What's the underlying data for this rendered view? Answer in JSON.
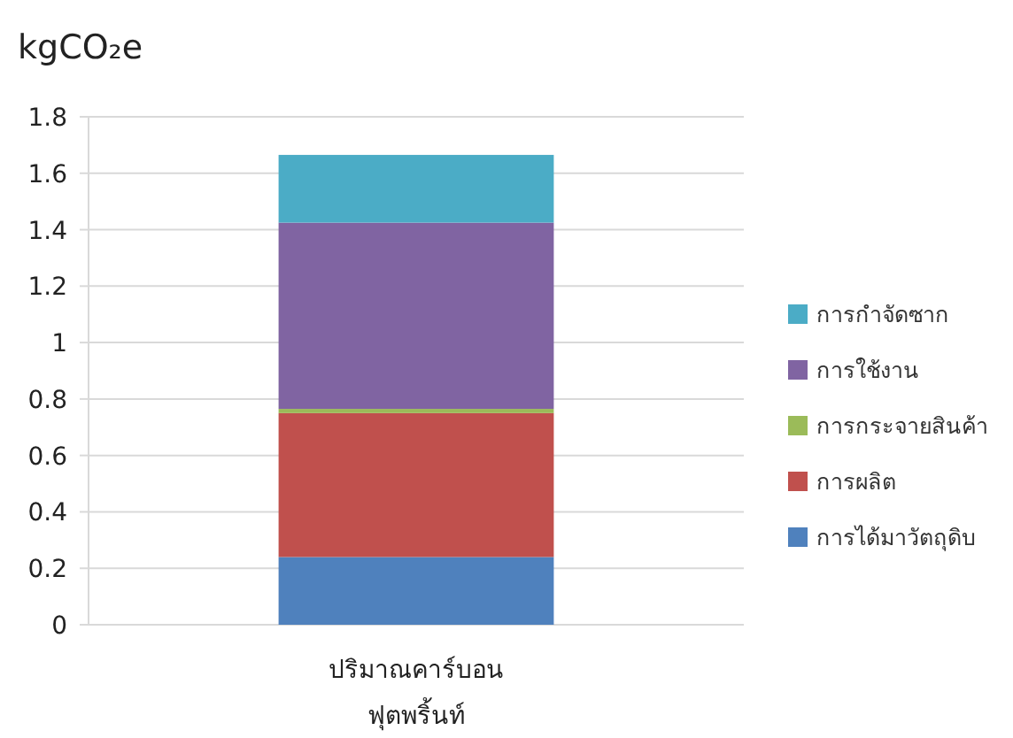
{
  "chart_data": {
    "type": "bar",
    "stacked": true,
    "ylabel": "kgCO₂e",
    "categories": [
      "ปริมาณคาร์บอน\nฟุตพริ้นท์"
    ],
    "series": [
      {
        "name": "การได้มาวัตถุดิบ",
        "color": "#4f81bd",
        "values": [
          0.24
        ]
      },
      {
        "name": "การผลิต",
        "color": "#c0504d",
        "values": [
          0.51
        ]
      },
      {
        "name": "การกระจายสินค้า",
        "color": "#9bbb59",
        "values": [
          0.015
        ]
      },
      {
        "name": "การใช้งาน",
        "color": "#8064a2",
        "values": [
          0.66
        ]
      },
      {
        "name": "การกำจัดซาก",
        "color": "#4bacc6",
        "values": [
          0.24
        ]
      }
    ],
    "ylim": [
      0,
      1.8
    ],
    "yticks": [
      0,
      0.2,
      0.4,
      0.6,
      0.8,
      1,
      1.2,
      1.4,
      1.6,
      1.8
    ],
    "grid": "y",
    "legend": "right"
  }
}
